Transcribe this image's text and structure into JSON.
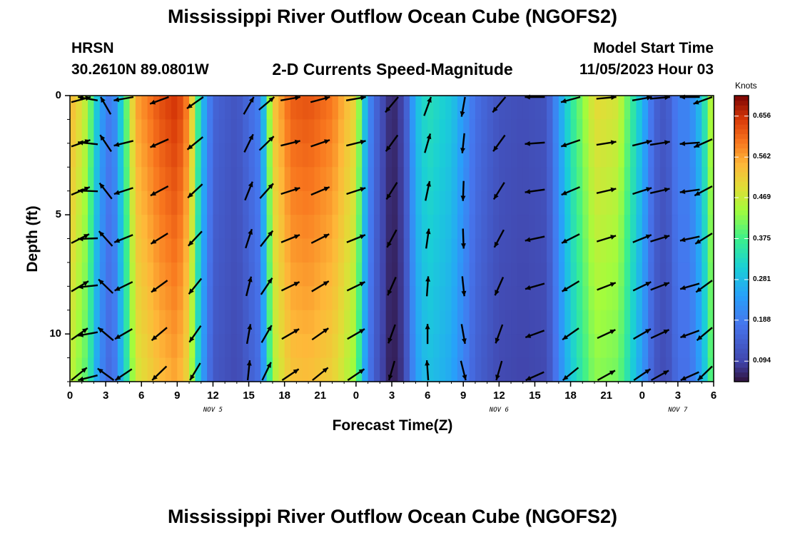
{
  "header": {
    "title": "Mississippi River Outflow Ocean Cube (NGOFS2)",
    "station_code": "HRSN",
    "station_coords": "30.2610N  89.0801W",
    "subtitle": "2-D Currents Speed-Magnitude",
    "model_start_label": "Model Start Time",
    "model_start_value": "11/05/2023 Hour 03"
  },
  "footer": {
    "title": "Mississippi River Outflow Ocean Cube (NGOFS2)"
  },
  "chart_data": {
    "type": "heatmap",
    "title": "2-D Currents Speed-Magnitude",
    "xlabel": "Forecast Time(Z)",
    "ylabel": "Depth (ft)",
    "x_start_hour": 0,
    "x_end_hour": 54,
    "y_range": [
      0,
      12
    ],
    "y_reversed": true,
    "x_tick_hours": [
      0,
      3,
      6,
      9,
      12,
      15,
      18,
      21,
      24,
      27,
      30,
      33,
      36,
      39,
      42,
      45,
      48,
      51,
      54
    ],
    "x_tick_labels": [
      "0",
      "3",
      "6",
      "9",
      "12",
      "15",
      "18",
      "21",
      "0",
      "3",
      "6",
      "9",
      "12",
      "15",
      "18",
      "21",
      "0",
      "3",
      "6"
    ],
    "y_ticks": [
      0,
      5,
      10
    ],
    "y_tick_labels": [
      "0",
      "5",
      "10"
    ],
    "date_labels": [
      {
        "hour": 12,
        "text": "NOV 5"
      },
      {
        "hour": 36,
        "text": "NOV 6"
      },
      {
        "hour": 51,
        "text": "NOV 7"
      }
    ],
    "colorbar": {
      "label": "Knots",
      "min": 0.047,
      "max": 0.703,
      "tick_values": [
        0.094,
        0.188,
        0.281,
        0.375,
        0.469,
        0.562,
        0.656
      ],
      "tick_labels": [
        "0.094",
        "0.188",
        "0.281",
        "0.375",
        "0.469",
        "0.562",
        "0.656"
      ]
    },
    "speed_profile": {
      "hours": [
        0,
        1.5,
        2.5,
        3.5,
        4.5,
        5.5,
        7.5,
        9,
        10,
        11,
        12,
        14,
        16,
        17,
        18.5,
        20,
        22,
        24,
        25,
        26,
        27,
        28,
        29,
        30,
        32,
        34,
        36,
        38,
        40,
        42,
        44,
        46,
        48,
        49,
        50,
        51,
        52,
        53,
        54
      ],
      "knots": [
        0.55,
        0.45,
        0.25,
        0.17,
        0.35,
        0.56,
        0.63,
        0.66,
        0.58,
        0.3,
        0.15,
        0.12,
        0.2,
        0.52,
        0.62,
        0.63,
        0.6,
        0.5,
        0.22,
        0.12,
        0.06,
        0.1,
        0.28,
        0.34,
        0.3,
        0.17,
        0.12,
        0.11,
        0.12,
        0.35,
        0.5,
        0.48,
        0.28,
        0.15,
        0.12,
        0.2,
        0.2,
        0.3,
        0.5
      ]
    },
    "depth_rows_ft": [
      0,
      2,
      4,
      6,
      8,
      10,
      12
    ],
    "vector_hours": [
      0,
      1.5,
      3,
      4.5,
      7.5,
      10.5,
      15,
      16.5,
      18.5,
      21,
      24,
      27,
      30,
      33,
      36,
      39,
      42,
      45,
      48,
      49.5,
      52,
      54
    ],
    "vector_angles_deg": [
      15,
      170,
      120,
      190,
      200,
      215,
      60,
      40,
      10,
      15,
      10,
      230,
      70,
      260,
      230,
      180,
      195,
      5,
      10,
      5,
      180,
      200
    ]
  }
}
